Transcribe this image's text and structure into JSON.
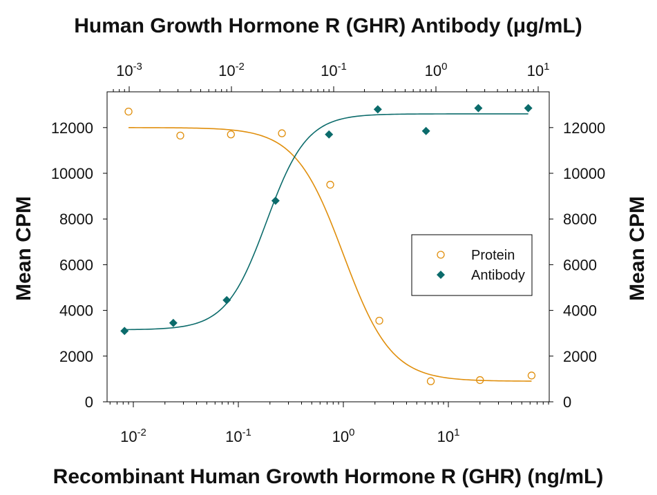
{
  "chart_data": {
    "type": "scatter",
    "title": "Human Growth Hormone R (GHR) Antibody (μg/mL)",
    "xlabel": "Recombinant Human Growth Hormone R (GHR) (ng/mL)",
    "ylabel_left": "Mean CPM",
    "ylabel_right": "Mean CPM",
    "ylim": [
      0,
      13000
    ],
    "y_ticks": [
      "0",
      "2000",
      "4000",
      "6000",
      "8000",
      "10000",
      "12000"
    ],
    "x_bottom": {
      "scale": "log",
      "range": [
        0.006,
        100
      ],
      "ticks": [
        {
          "base": "10",
          "exp": "-2"
        },
        {
          "base": "10",
          "exp": "-1"
        },
        {
          "base": "10",
          "exp": "0"
        },
        {
          "base": "10",
          "exp": "1"
        }
      ]
    },
    "x_top": {
      "scale": "log",
      "range": [
        0.0006,
        15
      ],
      "ticks": [
        {
          "base": "10",
          "exp": "-3"
        },
        {
          "base": "10",
          "exp": "-2"
        },
        {
          "base": "10",
          "exp": "-1"
        },
        {
          "base": "10",
          "exp": "0"
        },
        {
          "base": "10",
          "exp": "1"
        }
      ]
    },
    "legend_position": "right",
    "series": [
      {
        "name": "Protein",
        "axis": "bottom",
        "marker": "open-circle",
        "color": "#E08E0B",
        "x": [
          0.009,
          0.028,
          0.085,
          0.26,
          0.75,
          2.2,
          6.8,
          20,
          62
        ],
        "y": [
          12700,
          11650,
          11700,
          11750,
          9500,
          3550,
          900,
          950,
          1150
        ],
        "fit": {
          "bottom": 900,
          "top": 12000,
          "ec50": 1.0,
          "hill": 1.9
        }
      },
      {
        "name": "Antibody",
        "axis": "top",
        "marker": "filled-diamond",
        "color": "#0B6B6B",
        "x": [
          0.0009,
          0.0027,
          0.009,
          0.027,
          0.09,
          0.27,
          0.8,
          2.6,
          8
        ],
        "y": [
          3100,
          3450,
          4450,
          8800,
          11700,
          12800,
          11850,
          12850,
          12850
        ],
        "fit": {
          "bottom": 3150,
          "top": 12600,
          "ec50": 0.022,
          "hill": 2.2
        }
      }
    ]
  }
}
